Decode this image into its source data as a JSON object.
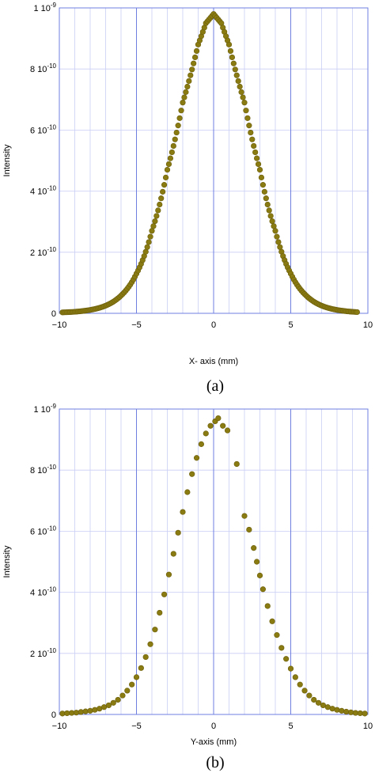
{
  "figure": {
    "marker_color": "#8a7a12",
    "marker_edge": "#6b5e0c",
    "major_grid_color": "#6f7fe0",
    "minor_grid_color": "#c9cef5"
  },
  "chart_data": [
    {
      "type": "scatter",
      "caption": "(a)",
      "xlabel": "X- axis (mm)",
      "ylabel": "Intensity",
      "xlim": [
        -10,
        10
      ],
      "ylim": [
        0,
        1e-09
      ],
      "x_ticks": [
        -10,
        -5,
        0,
        5,
        10
      ],
      "x_tick_labels": [
        "−10",
        "−5",
        "0",
        "5",
        "10"
      ],
      "y_ticks": [
        0,
        2e-10,
        4e-10,
        6e-10,
        8e-10,
        1e-09
      ],
      "y_tick_labels": [
        {
          "mant": "0",
          "exp": ""
        },
        {
          "mant": "2 10",
          "exp": "-10"
        },
        {
          "mant": "4 10",
          "exp": "-10"
        },
        {
          "mant": "6 10",
          "exp": "-10"
        },
        {
          "mant": "8 10",
          "exp": "-10"
        },
        {
          "mant": "1 10",
          "exp": "-9"
        }
      ],
      "grid": true,
      "series": [
        {
          "peak_x": 0.0,
          "peak_y": 9.8e-10,
          "step": 0.1,
          "x_from": -9.8,
          "x_to": 9.3,
          "points": [
            [
              -9.8,
              3e-12
            ],
            [
              -9.0,
              5e-12
            ],
            [
              -8.0,
              1.1e-11
            ],
            [
              -7.0,
              2.5e-11
            ],
            [
              -6.0,
              5.8e-11
            ],
            [
              -5.0,
              1.3e-10
            ],
            [
              -4.0,
              2.7e-10
            ],
            [
              -3.0,
              4.7e-10
            ],
            [
              -2.0,
              6.9e-10
            ],
            [
              -1.0,
              8.8e-10
            ],
            [
              -0.5,
              9.5e-10
            ],
            [
              0.0,
              9.8e-10
            ],
            [
              0.5,
              9.5e-10
            ],
            [
              1.0,
              8.8e-10
            ],
            [
              2.0,
              6.9e-10
            ],
            [
              3.0,
              4.7e-10
            ],
            [
              4.0,
              2.7e-10
            ],
            [
              5.0,
              1.3e-10
            ],
            [
              6.0,
              5.8e-11
            ],
            [
              7.0,
              2.5e-11
            ],
            [
              8.0,
              1.1e-11
            ],
            [
              9.0,
              5e-12
            ],
            [
              9.3,
              4e-12
            ]
          ]
        }
      ]
    },
    {
      "type": "scatter",
      "caption": "(b)",
      "xlabel": "Y-axis (mm)",
      "ylabel": "Intensity",
      "xlim": [
        -10,
        10
      ],
      "ylim": [
        0,
        1e-09
      ],
      "x_ticks": [
        -10,
        -5,
        0,
        5,
        10
      ],
      "x_tick_labels": [
        "−10",
        "−5",
        "0",
        "5",
        "10"
      ],
      "y_ticks": [
        0,
        2e-10,
        4e-10,
        6e-10,
        8e-10,
        1e-09
      ],
      "y_tick_labels": [
        {
          "mant": "0",
          "exp": ""
        },
        {
          "mant": "2 10",
          "exp": "-10"
        },
        {
          "mant": "4 10",
          "exp": "-10"
        },
        {
          "mant": "6 10",
          "exp": "-10"
        },
        {
          "mant": "8 10",
          "exp": "-10"
        },
        {
          "mant": "1 10",
          "exp": "-9"
        }
      ],
      "grid": true,
      "series": [
        {
          "points": [
            [
              -9.8,
              3e-12
            ],
            [
              -9.5,
              4e-12
            ],
            [
              -9.2,
              5e-12
            ],
            [
              -8.9,
              6e-12
            ],
            [
              -8.6,
              8e-12
            ],
            [
              -8.3,
              1e-11
            ],
            [
              -8.0,
              1.2e-11
            ],
            [
              -7.7,
              1.5e-11
            ],
            [
              -7.4,
              1.9e-11
            ],
            [
              -7.1,
              2.4e-11
            ],
            [
              -6.8,
              3e-11
            ],
            [
              -6.5,
              3.8e-11
            ],
            [
              -6.2,
              4.8e-11
            ],
            [
              -5.9,
              6.2e-11
            ],
            [
              -5.6,
              7.8e-11
            ],
            [
              -5.3,
              9.8e-11
            ],
            [
              -5.0,
              1.22e-10
            ],
            [
              -4.7,
              1.52e-10
            ],
            [
              -4.4,
              1.88e-10
            ],
            [
              -4.1,
              2.3e-10
            ],
            [
              -3.8,
              2.78e-10
            ],
            [
              -3.5,
              3.33e-10
            ],
            [
              -3.2,
              3.93e-10
            ],
            [
              -2.9,
              4.58e-10
            ],
            [
              -2.6,
              5.26e-10
            ],
            [
              -2.3,
              5.95e-10
            ],
            [
              -2.0,
              6.63e-10
            ],
            [
              -1.7,
              7.28e-10
            ],
            [
              -1.4,
              7.87e-10
            ],
            [
              -1.1,
              8.4e-10
            ],
            [
              -0.8,
              8.85e-10
            ],
            [
              -0.5,
              9.2e-10
            ],
            [
              -0.2,
              9.45e-10
            ],
            [
              0.1,
              9.6e-10
            ],
            [
              0.3,
              9.7e-10
            ],
            [
              0.6,
              9.45e-10
            ],
            [
              0.9,
              9.3e-10
            ],
            [
              1.5,
              8.2e-10
            ],
            [
              2.0,
              6.5e-10
            ],
            [
              2.3,
              6.05e-10
            ],
            [
              2.6,
              5.45e-10
            ],
            [
              2.8,
              5e-10
            ],
            [
              3.0,
              4.55e-10
            ],
            [
              3.2,
              4.1e-10
            ],
            [
              3.5,
              3.55e-10
            ],
            [
              3.8,
              3.05e-10
            ],
            [
              4.1,
              2.6e-10
            ],
            [
              4.4,
              2.18e-10
            ],
            [
              4.7,
              1.82e-10
            ],
            [
              5.0,
              1.5e-10
            ],
            [
              5.3,
              1.22e-10
            ],
            [
              5.6,
              9.8e-11
            ],
            [
              5.9,
              7.8e-11
            ],
            [
              6.2,
              6.2e-11
            ],
            [
              6.5,
              4.8e-11
            ],
            [
              6.8,
              3.8e-11
            ],
            [
              7.1,
              3e-11
            ],
            [
              7.4,
              2.4e-11
            ],
            [
              7.7,
              1.9e-11
            ],
            [
              8.0,
              1.5e-11
            ],
            [
              8.3,
              1.2e-11
            ],
            [
              8.6,
              9e-12
            ],
            [
              8.9,
              7e-12
            ],
            [
              9.2,
              5e-12
            ],
            [
              9.5,
              4e-12
            ],
            [
              9.8,
              3e-12
            ]
          ]
        }
      ]
    }
  ]
}
